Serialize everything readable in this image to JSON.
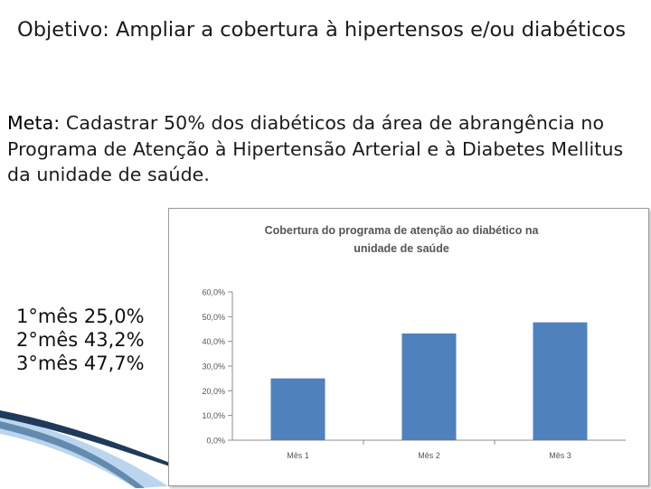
{
  "slide": {
    "title": "Objetivo: Ampliar a cobertura à hipertensos e/ou diabéticos",
    "goal_label": "Meta:",
    "goal_text": " Cadastrar 50% dos diabéticos da área de abrangência no Programa de Atenção à Hipertensão Arterial e à Diabetes Mellitus da unidade de saúde.",
    "stats": [
      {
        "label": "1°mês",
        "value": "25,0%"
      },
      {
        "label": "2°mês",
        "value": "43,2%"
      },
      {
        "label": "3°mês",
        "value": "47,7%"
      }
    ]
  },
  "chart_data": {
    "type": "bar",
    "title_lines": [
      "Cobertura do programa de atenção ao diabético na",
      "unidade de saúde"
    ],
    "categories": [
      "Mês 1",
      "Mês 2",
      "Mês 3"
    ],
    "values": [
      25.0,
      43.2,
      47.7
    ],
    "ylim": [
      0,
      60
    ],
    "yticks": [
      "0,0%",
      "10,0%",
      "20,0%",
      "30,0%",
      "40,0%",
      "50,0%",
      "60,0%"
    ],
    "grid": false,
    "legend": "none",
    "bar_color": "#4f81bd"
  },
  "colors": {
    "bar": "#4f81bd",
    "axis": "#8c8c8c",
    "decoration_dark": "#1f3a5a",
    "decoration_light": "#9cc3e6"
  }
}
